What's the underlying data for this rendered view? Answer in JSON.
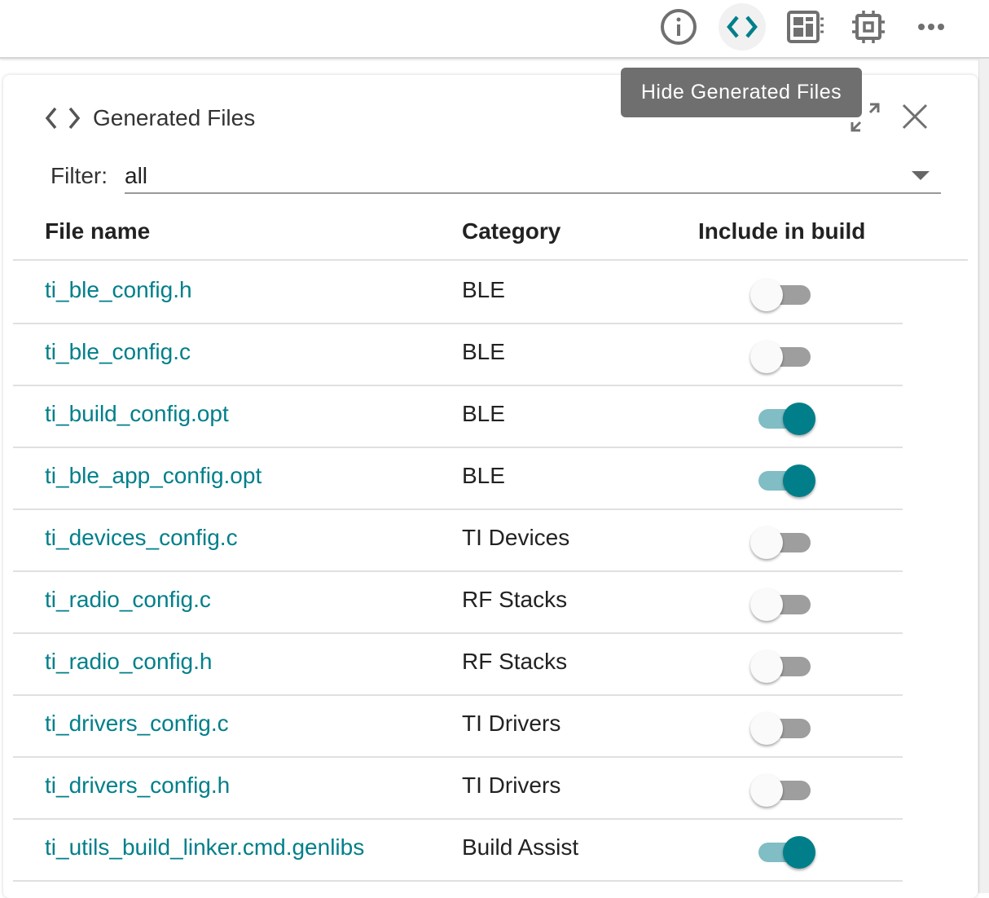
{
  "toolbar": {
    "icons": [
      "info-icon",
      "code-icon",
      "layout-icon",
      "chip-icon",
      "more-icon"
    ],
    "active": "code-icon"
  },
  "tooltip": "Hide Generated Files",
  "panel": {
    "title": "Generated Files",
    "filter_label": "Filter:",
    "filter_value": "all"
  },
  "table": {
    "headers": [
      "File name",
      "Category",
      "Include in build"
    ],
    "rows": [
      {
        "file": "ti_ble_config.h",
        "category": "BLE",
        "include": false
      },
      {
        "file": "ti_ble_config.c",
        "category": "BLE",
        "include": false
      },
      {
        "file": "ti_build_config.opt",
        "category": "BLE",
        "include": true
      },
      {
        "file": "ti_ble_app_config.opt",
        "category": "BLE",
        "include": true
      },
      {
        "file": "ti_devices_config.c",
        "category": "TI Devices",
        "include": false
      },
      {
        "file": "ti_radio_config.c",
        "category": "RF Stacks",
        "include": false
      },
      {
        "file": "ti_radio_config.h",
        "category": "RF Stacks",
        "include": false
      },
      {
        "file": "ti_drivers_config.c",
        "category": "TI Drivers",
        "include": false
      },
      {
        "file": "ti_drivers_config.h",
        "category": "TI Drivers",
        "include": false
      },
      {
        "file": "ti_utils_build_linker.cmd.genlibs",
        "category": "Build Assist",
        "include": true
      }
    ]
  },
  "colors": {
    "accent": "#007f8a",
    "icon": "#707070"
  }
}
